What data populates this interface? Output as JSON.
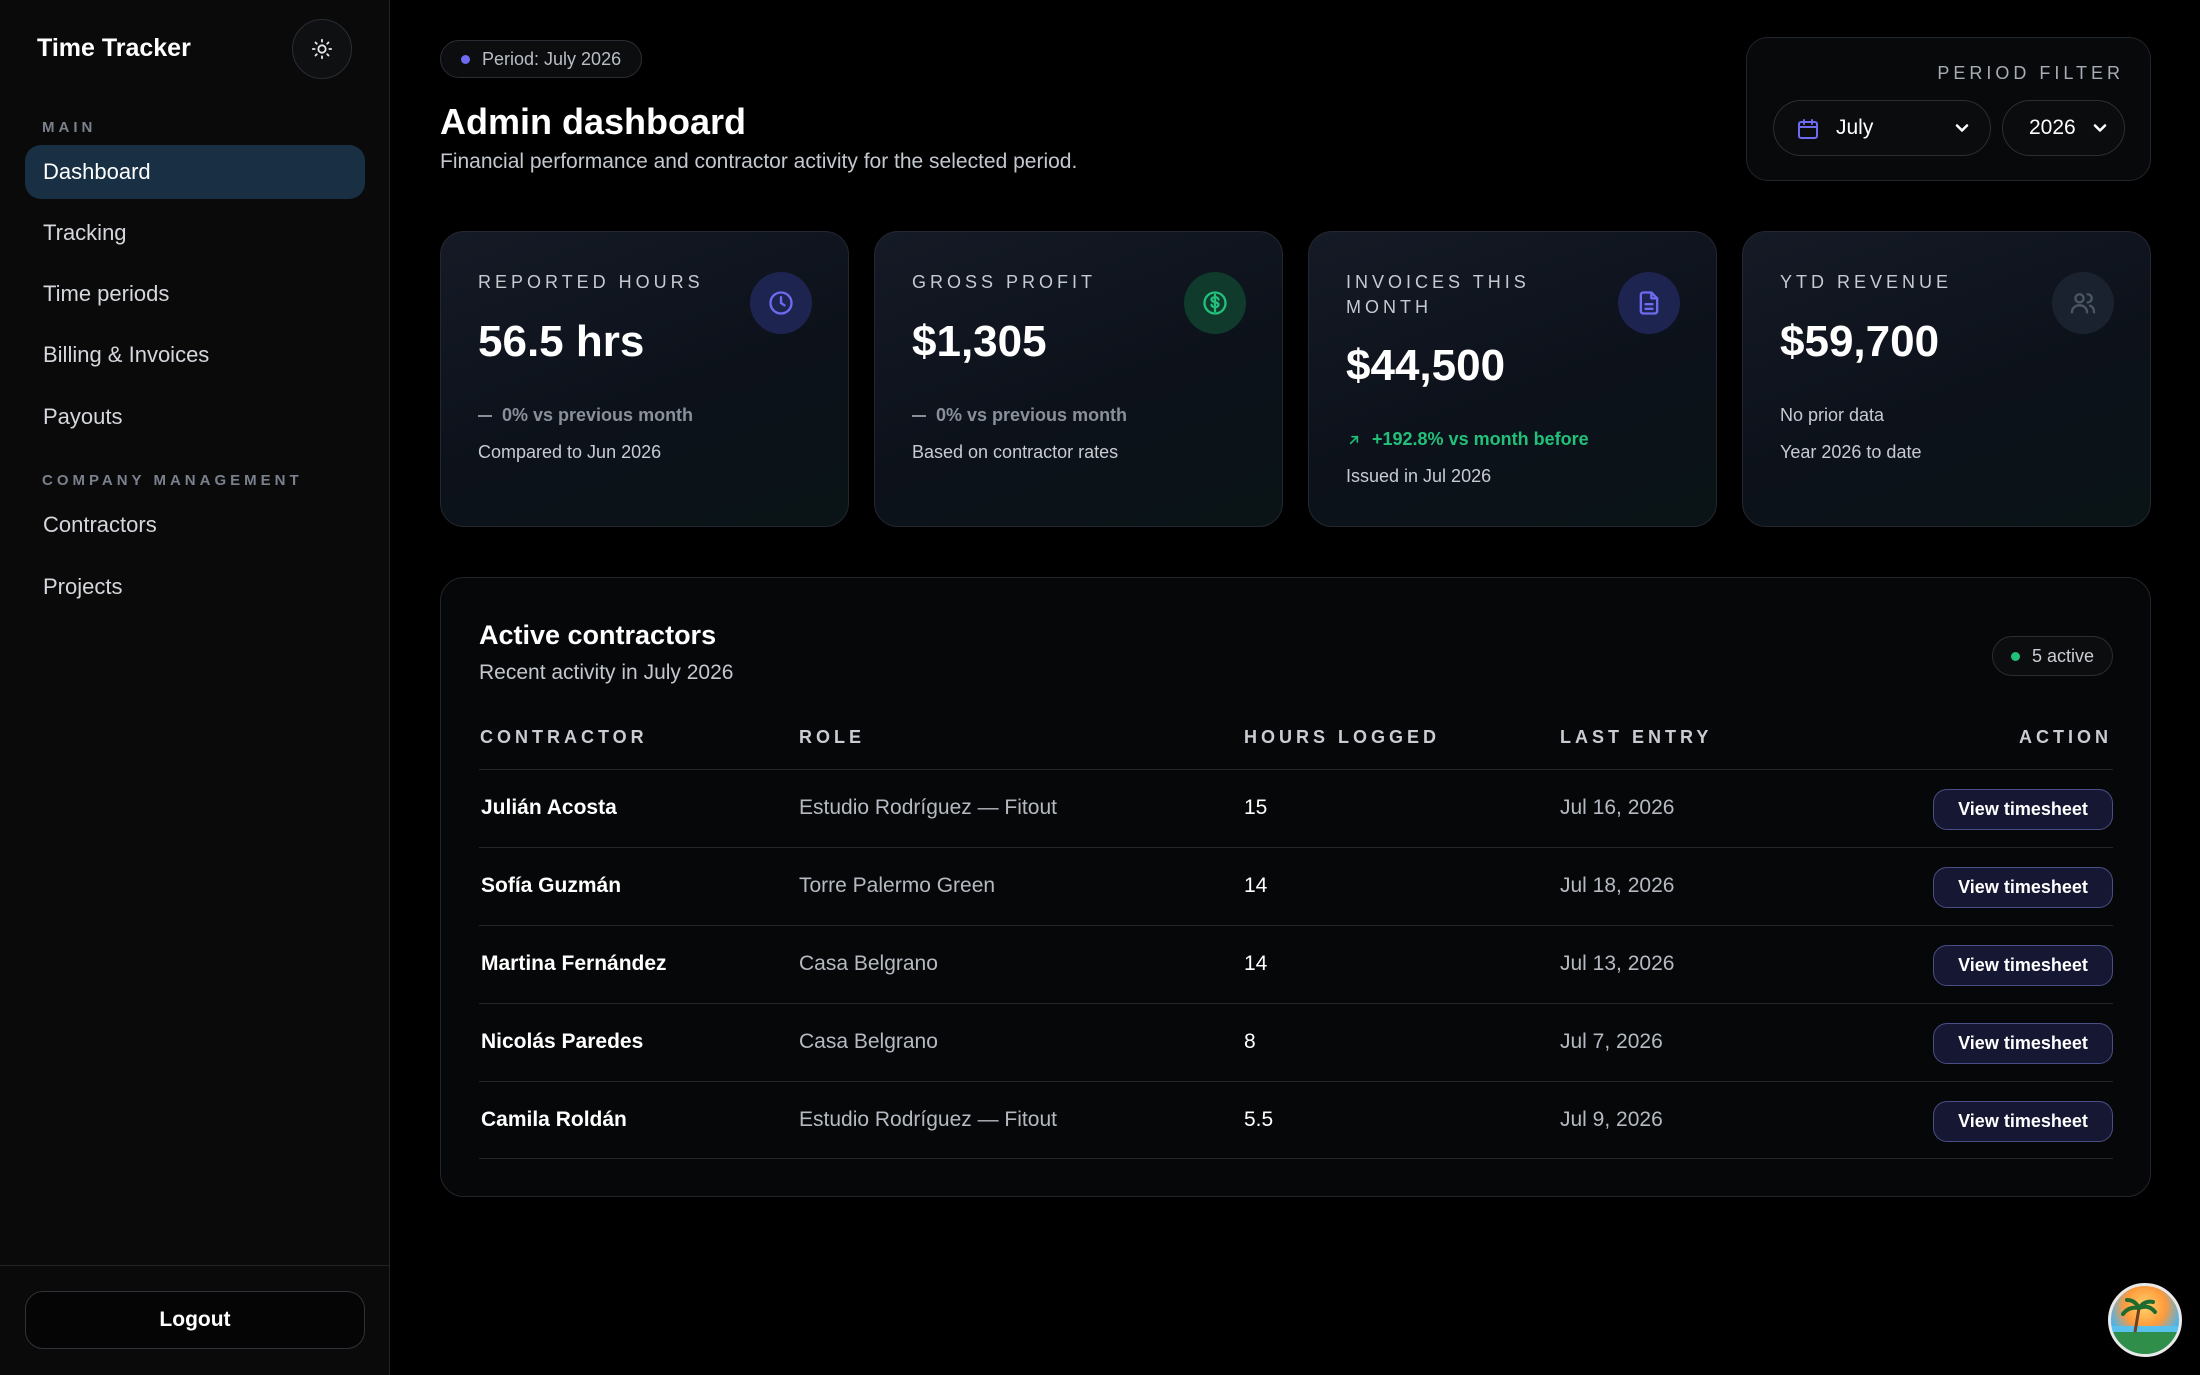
{
  "sidebar": {
    "brand": "Time Tracker",
    "sections": {
      "main": "MAIN",
      "company": "COMPANY MANAGEMENT"
    },
    "items": [
      {
        "label": "Dashboard",
        "active": true
      },
      {
        "label": "Tracking"
      },
      {
        "label": "Time periods"
      },
      {
        "label": "Billing & Invoices"
      },
      {
        "label": "Payouts"
      },
      {
        "label": "Contractors"
      },
      {
        "label": "Projects"
      }
    ],
    "logout": "Logout"
  },
  "header": {
    "period_pill": "Period: July 2026",
    "title": "Admin dashboard",
    "subtitle": "Financial performance and contractor activity for the selected period."
  },
  "filter": {
    "label": "PERIOD FILTER",
    "month": "July",
    "year": "2026"
  },
  "cards": [
    {
      "label": "REPORTED HOURS",
      "value": "56.5 hrs",
      "trend": "0% vs previous month",
      "note": "Compared to Jun 2026",
      "icon": "clock-icon",
      "accent": "#6d6bf0"
    },
    {
      "label": "GROSS PROFIT",
      "value": "$1,305",
      "trend": "0% vs previous month",
      "note": "Based on contractor rates",
      "icon": "dollar-icon",
      "accent": "#22c07a"
    },
    {
      "label": "INVOICES THIS MONTH",
      "value": "$44,500",
      "trend": "+192.8% vs month before",
      "note": "Issued in Jul 2026",
      "icon": "document-icon",
      "accent": "#6d6bf0"
    },
    {
      "label": "YTD REVENUE",
      "value": "$59,700",
      "trend": "No prior data",
      "note": "Year 2026 to date",
      "icon": "users-icon",
      "accent": "#6b7280"
    }
  ],
  "contractors": {
    "title": "Active contractors",
    "subtitle": "Recent activity in July 2026",
    "badge": "5 active",
    "columns": [
      "CONTRACTOR",
      "ROLE",
      "HOURS LOGGED",
      "LAST ENTRY",
      "ACTION"
    ],
    "action_label": "View timesheet",
    "rows": [
      {
        "name": "Julián Acosta",
        "role": "Estudio Rodríguez — Fitout",
        "hours": "15",
        "last": "Jul 16, 2026"
      },
      {
        "name": "Sofía Guzmán",
        "role": "Torre Palermo Green",
        "hours": "14",
        "last": "Jul 18, 2026"
      },
      {
        "name": "Martina Fernández",
        "role": "Casa Belgrano",
        "hours": "14",
        "last": "Jul 13, 2026"
      },
      {
        "name": "Nicolás Paredes",
        "role": "Casa Belgrano",
        "hours": "8",
        "last": "Jul 7, 2026"
      },
      {
        "name": "Camila Roldán",
        "role": "Estudio Rodríguez — Fitout",
        "hours": "5.5",
        "last": "Jul 9, 2026"
      }
    ]
  },
  "colors": {
    "accent_indigo": "#6d6bf0",
    "accent_green": "#22c07a",
    "active_nav": "#182f44"
  }
}
